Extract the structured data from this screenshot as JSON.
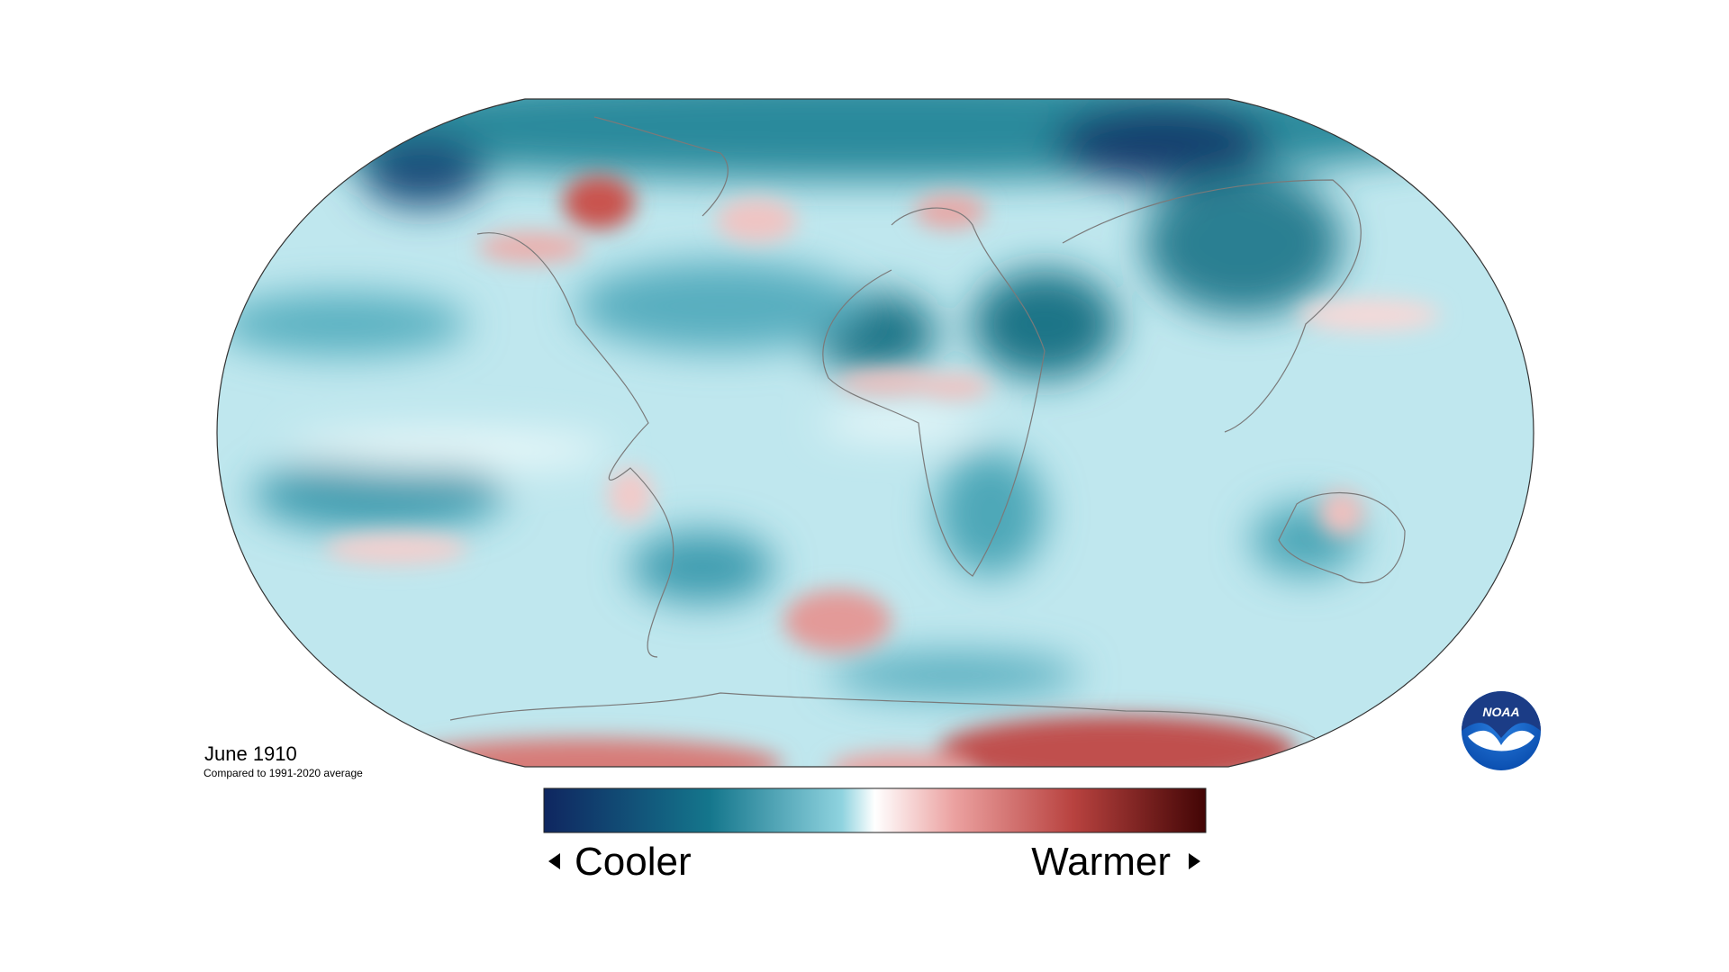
{
  "map": {
    "title": "June 1910",
    "subtitle": "Compared to 1991-2020 average",
    "legend": {
      "low": "Cooler",
      "high": "Warmer"
    },
    "logo": "NOAA"
  }
}
